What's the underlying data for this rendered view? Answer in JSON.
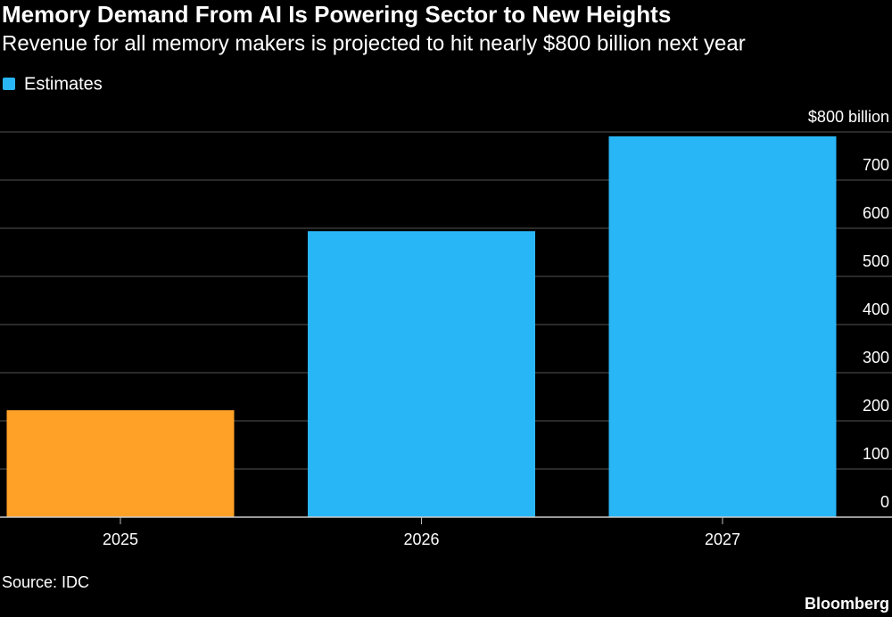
{
  "chart_data": {
    "type": "bar",
    "title": "Memory Demand From AI Is Powering Sector to New Heights",
    "subtitle": "Revenue for all memory makers is projected to hit nearly $800 billion next year",
    "legend": {
      "label": "Estimates",
      "color": "#29b6f6"
    },
    "categories": [
      "2025",
      "2026",
      "2027"
    ],
    "values": [
      222,
      594,
      791
    ],
    "colors": [
      "#ffa126",
      "#29b6f6",
      "#29b6f6"
    ],
    "ylim": [
      0,
      800
    ],
    "yticks": [
      0,
      100,
      200,
      300,
      400,
      500,
      600,
      700,
      {
        "value": 800,
        "label": "$800 billion"
      }
    ],
    "grid": true,
    "source": "Source: IDC",
    "brand": "Bloomberg"
  }
}
